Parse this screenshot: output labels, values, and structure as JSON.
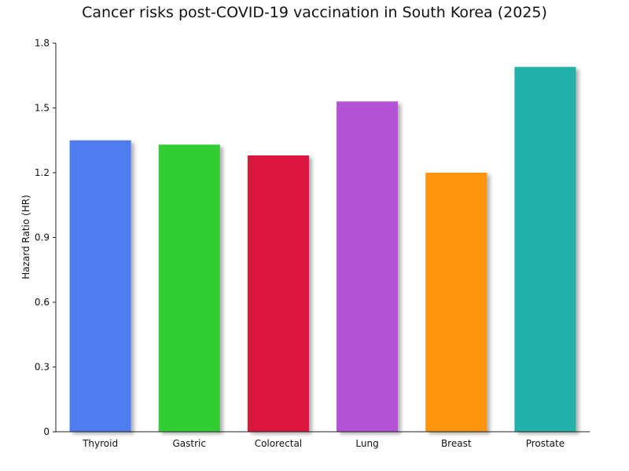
{
  "chart_data": {
    "type": "bar",
    "title": "Cancer risks post-COVID-19 vaccination in South Korea (2025)",
    "xlabel": "",
    "ylabel": "Hazard Ratio (HR)",
    "categories": [
      "Thyroid",
      "Gastric",
      "Colorectal",
      "Lung",
      "Breast",
      "Prostate"
    ],
    "values": [
      1.35,
      1.33,
      1.28,
      1.53,
      1.2,
      1.69
    ],
    "colors": [
      "#4f7df0",
      "#32cd32",
      "#dc143c",
      "#b452d4",
      "#ff9408",
      "#20b2aa"
    ],
    "ylim": [
      0,
      1.8
    ],
    "yticks": [
      "0",
      "0.3",
      "0.6",
      "0.9",
      "1.2",
      "1.5",
      "1.8"
    ],
    "grid": false,
    "legend": "none"
  }
}
